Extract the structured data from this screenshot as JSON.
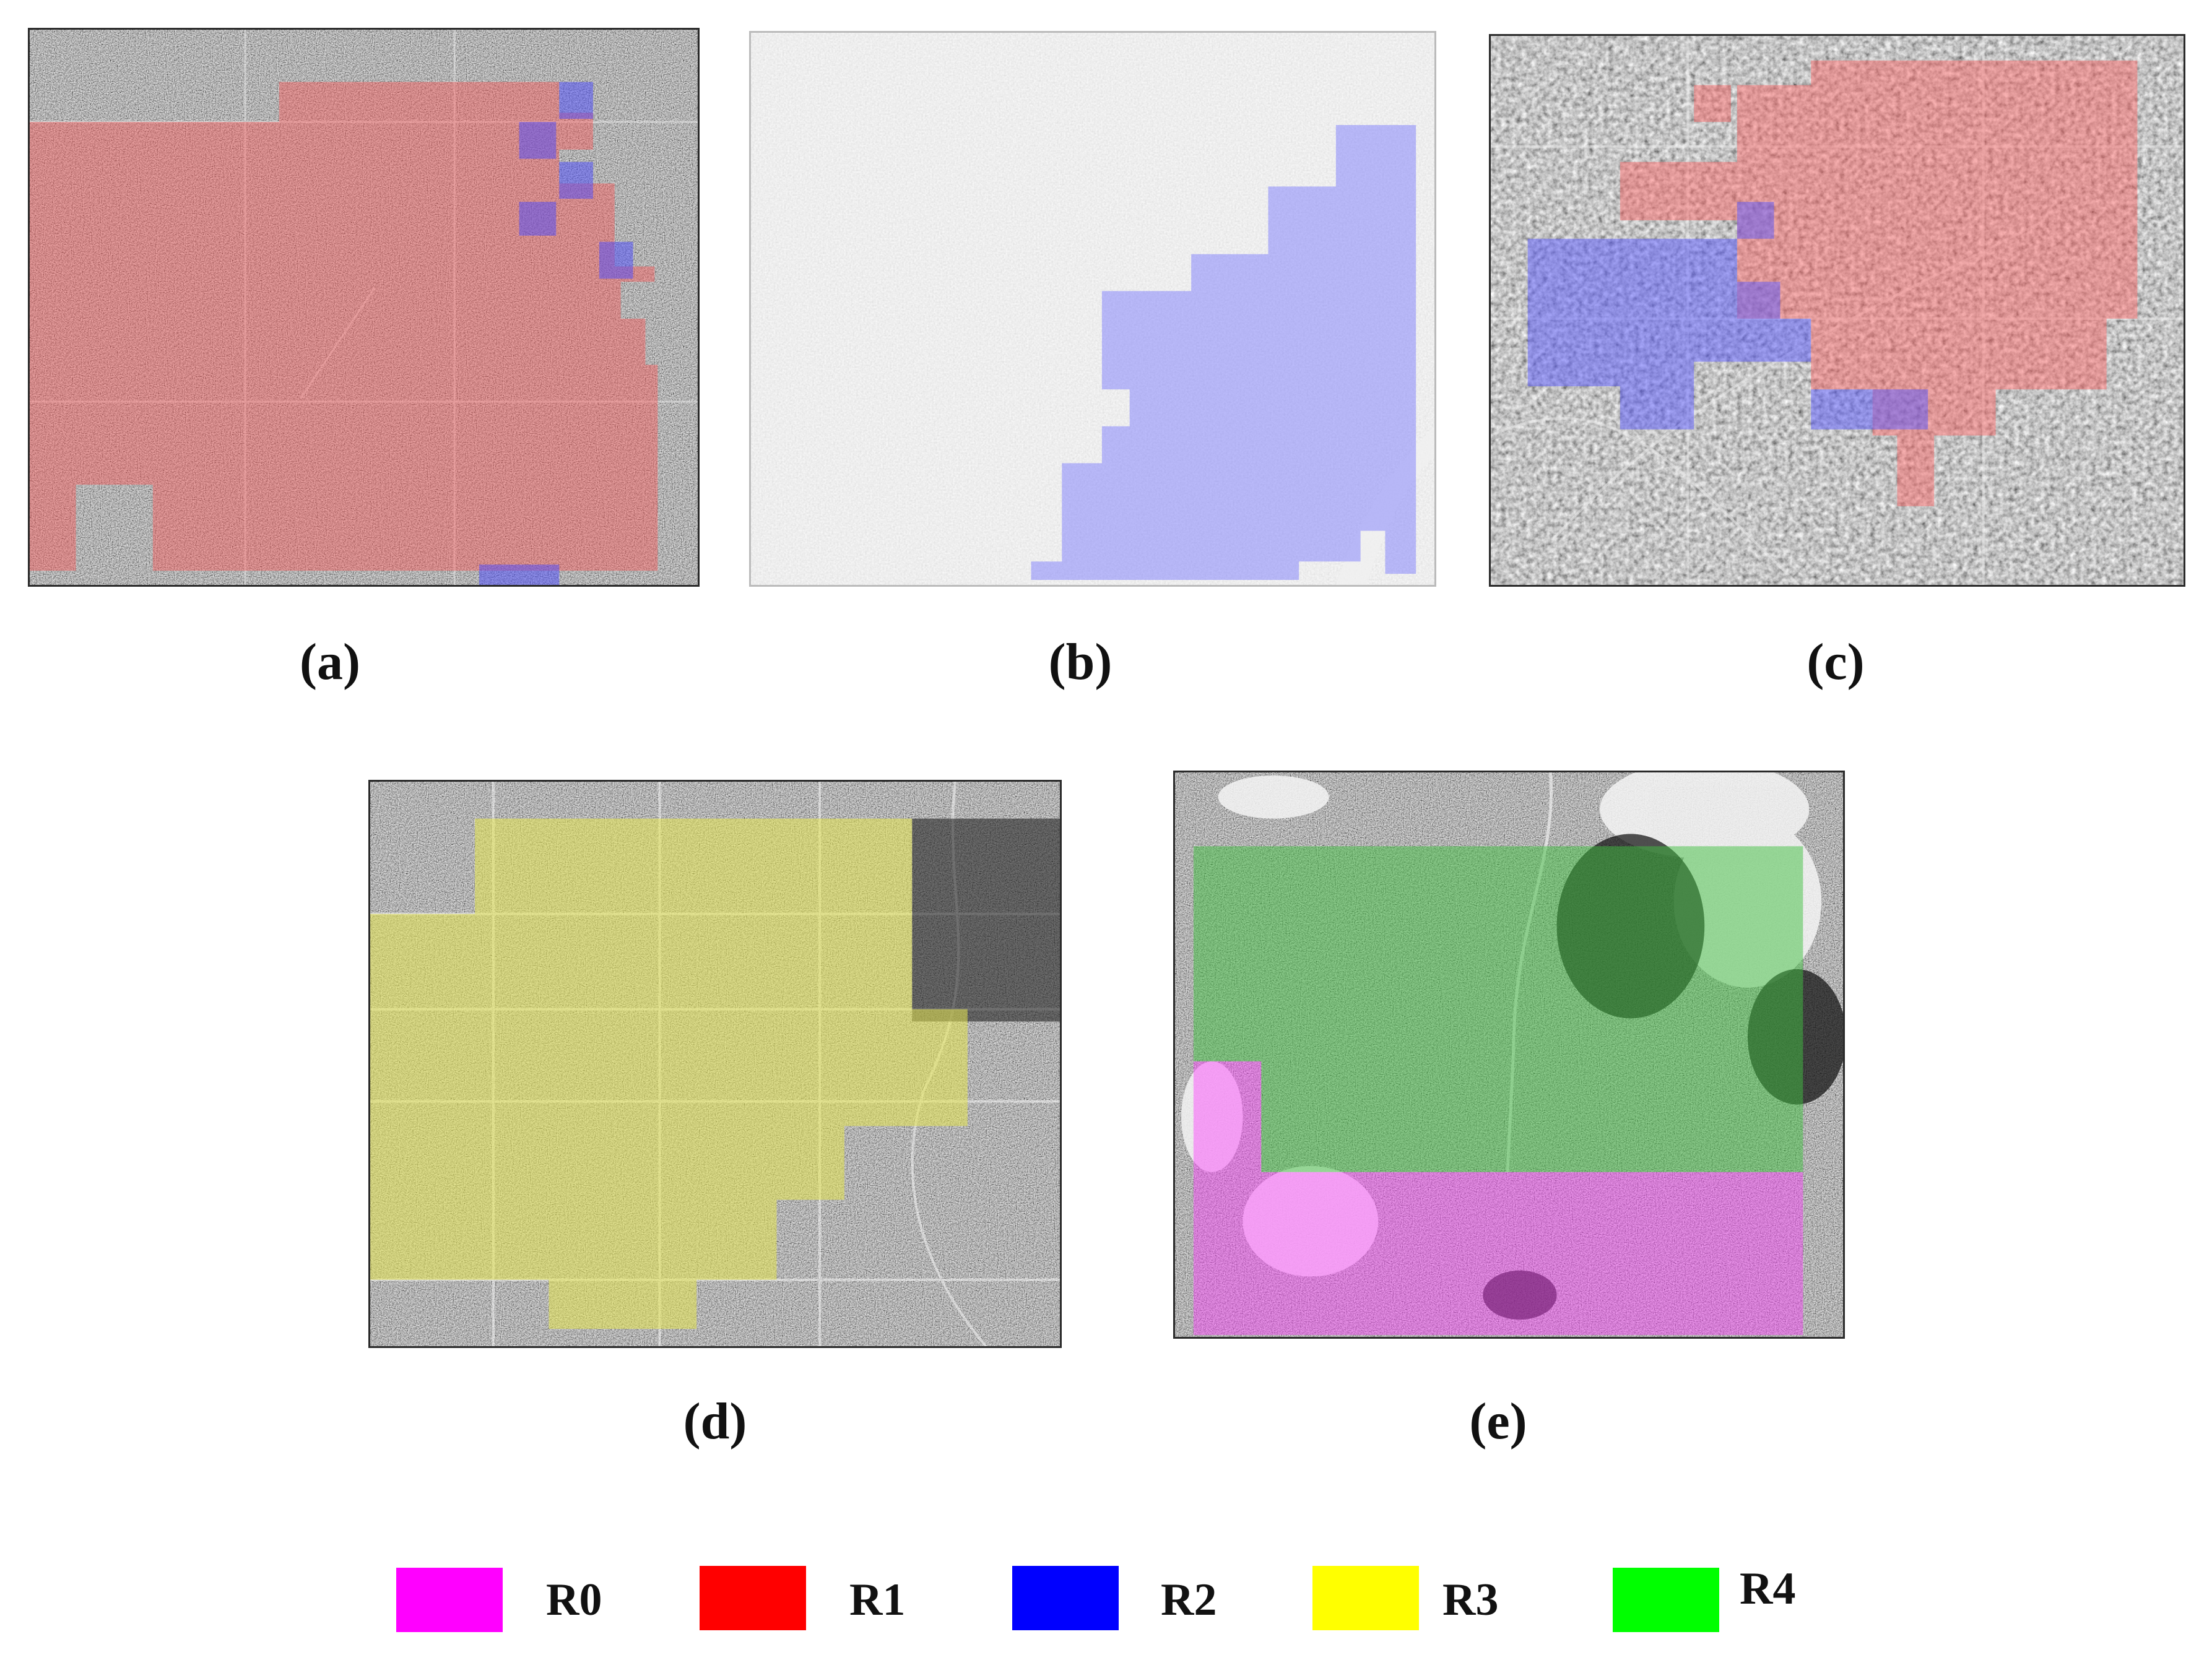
{
  "panels": [
    {
      "id": "a",
      "caption": "(a)"
    },
    {
      "id": "b",
      "caption": "(b)"
    },
    {
      "id": "c",
      "caption": "(c)"
    },
    {
      "id": "d",
      "caption": "(d)"
    },
    {
      "id": "e",
      "caption": "(e)"
    }
  ],
  "legend": [
    {
      "label": "R0",
      "color": "#ff00ff"
    },
    {
      "label": "R1",
      "color": "#ff0000"
    },
    {
      "label": "R2",
      "color": "#0000ff"
    },
    {
      "label": "R3",
      "color": "#ffff00"
    },
    {
      "label": "R4",
      "color": "#00ff00"
    }
  ]
}
